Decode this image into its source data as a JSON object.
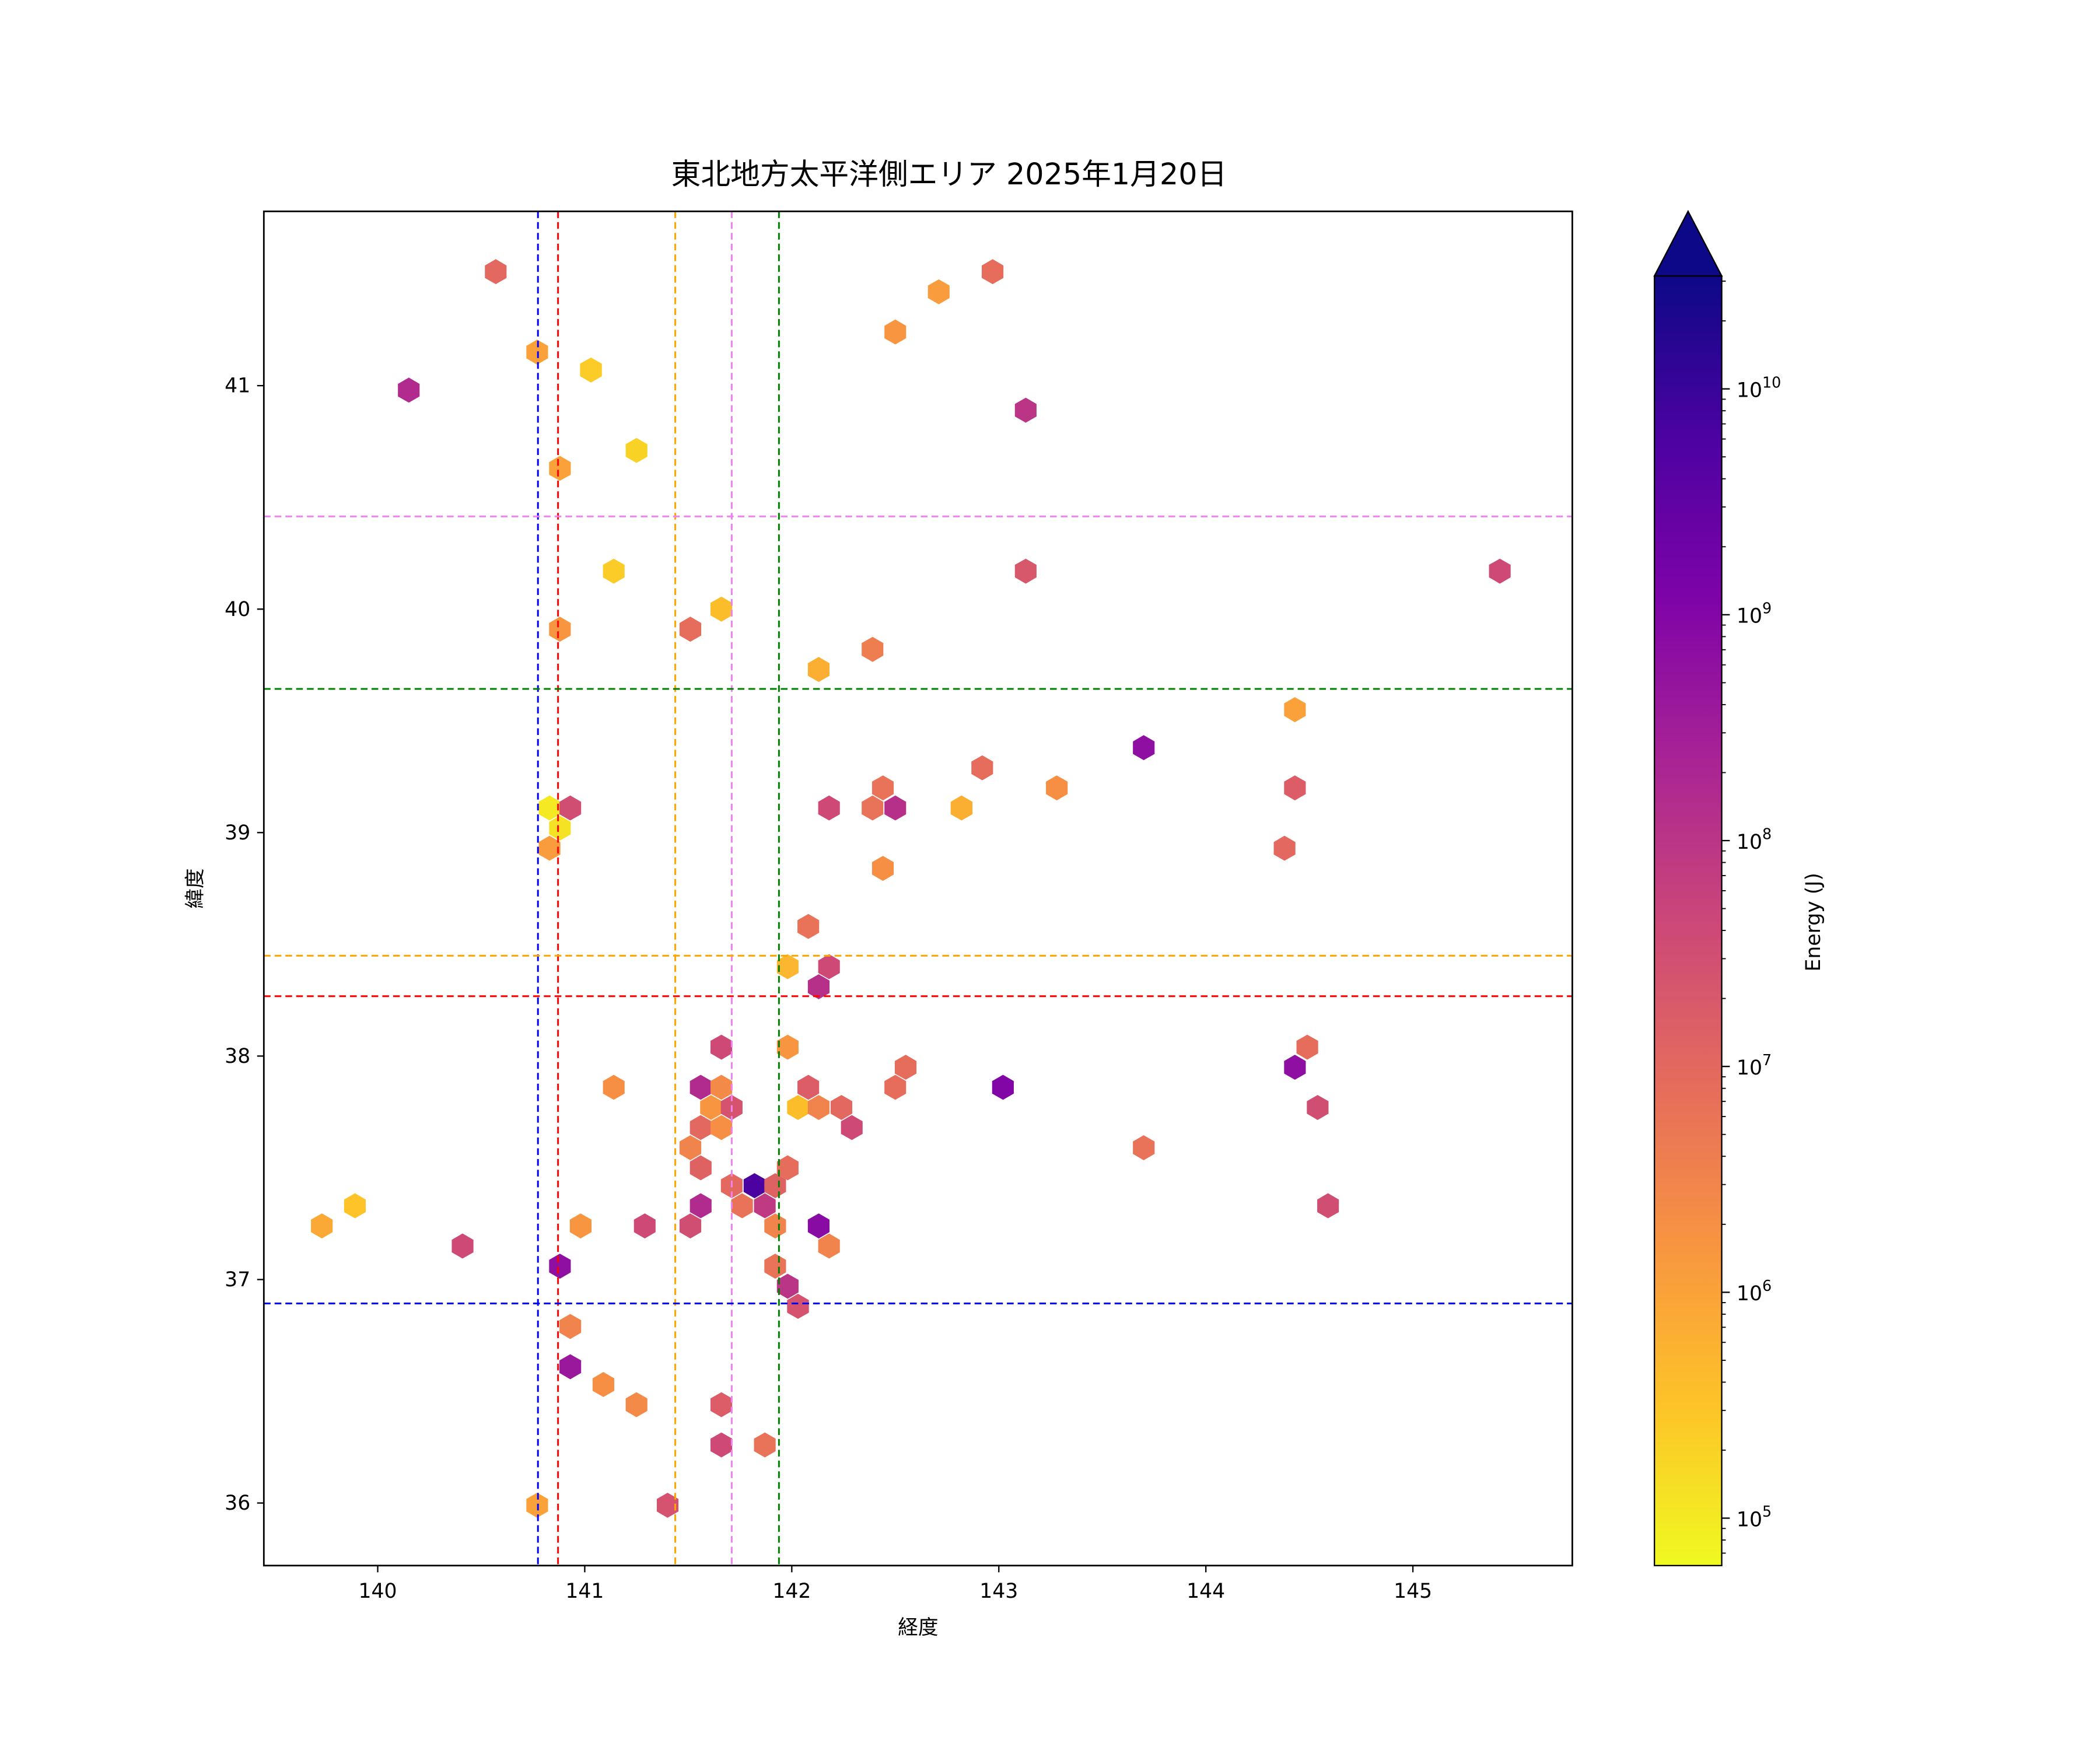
{
  "chart_data": {
    "type": "hexbin",
    "title": "東北地方太平洋側エリア 2025年1月20日",
    "xlabel": "経度",
    "ylabel": "緯度",
    "xlim": [
      139.45,
      145.77
    ],
    "ylim": [
      35.72,
      41.78
    ],
    "xticks": [
      140,
      141,
      142,
      143,
      144,
      145
    ],
    "yticks": [
      36,
      37,
      38,
      39,
      40,
      41
    ],
    "colorbar": {
      "label": "Energy (J)",
      "scale": "log",
      "colormap": "plasma_r",
      "log10_range": [
        4.79,
        10.5
      ],
      "extend": "max",
      "ticks": [
        {
          "exp": 5,
          "base": "10",
          "sup": "5"
        },
        {
          "exp": 6,
          "base": "10",
          "sup": "6"
        },
        {
          "exp": 7,
          "base": "10",
          "sup": "7"
        },
        {
          "exp": 8,
          "base": "10",
          "sup": "8"
        },
        {
          "exp": 9,
          "base": "10",
          "sup": "9"
        },
        {
          "exp": 10,
          "base": "10",
          "sup": "10"
        }
      ]
    },
    "reference_lines": {
      "vertical": [
        {
          "lon": 140.774,
          "color": "#0000ff"
        },
        {
          "lon": 140.871,
          "color": "#ff0000"
        },
        {
          "lon": 141.437,
          "color": "#ffa500"
        },
        {
          "lon": 141.71,
          "color": "#ee82ee"
        },
        {
          "lon": 141.938,
          "color": "#008000"
        }
      ],
      "horizontal": [
        {
          "lat": 40.415,
          "color": "#ee82ee"
        },
        {
          "lat": 39.643,
          "color": "#008000"
        },
        {
          "lat": 38.449,
          "color": "#ffa500"
        },
        {
          "lat": 38.268,
          "color": "#ff0000"
        },
        {
          "lat": 36.893,
          "color": "#0000ff"
        }
      ]
    },
    "columns": [
      "lon",
      "lat",
      "log10_energy_J"
    ],
    "points": [
      [
        140.57,
        41.51,
        7.0
      ],
      [
        140.77,
        41.15,
        6.0
      ],
      [
        140.15,
        40.98,
        8.2
      ],
      [
        141.03,
        41.07,
        5.4
      ],
      [
        141.25,
        40.71,
        5.3
      ],
      [
        140.88,
        40.63,
        6.0
      ],
      [
        141.14,
        40.17,
        5.4
      ],
      [
        140.88,
        39.91,
        6.2
      ],
      [
        141.51,
        39.91,
        6.9
      ],
      [
        141.66,
        40.0,
        5.6
      ],
      [
        142.13,
        39.73,
        5.8
      ],
      [
        142.39,
        39.82,
        6.6
      ],
      [
        142.5,
        41.24,
        6.2
      ],
      [
        142.71,
        41.42,
        6.1
      ],
      [
        142.97,
        41.51,
        6.9
      ],
      [
        143.13,
        40.89,
        8.0
      ],
      [
        143.13,
        40.17,
        7.3
      ],
      [
        145.42,
        40.17,
        7.6
      ],
      [
        140.83,
        39.11,
        5.0
      ],
      [
        140.88,
        39.02,
        5.1
      ],
      [
        140.93,
        39.11,
        7.5
      ],
      [
        140.83,
        38.93,
        6.1
      ],
      [
        142.18,
        39.11,
        7.6
      ],
      [
        142.39,
        39.11,
        6.8
      ],
      [
        142.44,
        39.2,
        6.8
      ],
      [
        142.5,
        39.11,
        8.1
      ],
      [
        142.44,
        38.84,
        6.3
      ],
      [
        142.82,
        39.11,
        5.8
      ],
      [
        142.92,
        39.29,
        6.9
      ],
      [
        143.28,
        39.2,
        6.3
      ],
      [
        143.7,
        39.38,
        8.8
      ],
      [
        144.43,
        39.55,
        6.0
      ],
      [
        144.43,
        39.2,
        7.2
      ],
      [
        144.38,
        38.93,
        7.0
      ],
      [
        142.08,
        38.58,
        6.8
      ],
      [
        141.98,
        38.4,
        5.7
      ],
      [
        142.18,
        38.4,
        7.6
      ],
      [
        142.13,
        38.31,
        8.1
      ],
      [
        141.66,
        38.04,
        7.6
      ],
      [
        141.98,
        38.04,
        6.2
      ],
      [
        141.14,
        37.86,
        6.3
      ],
      [
        141.56,
        37.86,
        8.2
      ],
      [
        141.66,
        37.86,
        6.4
      ],
      [
        141.61,
        37.77,
        6.2
      ],
      [
        141.71,
        37.77,
        7.4
      ],
      [
        141.56,
        37.68,
        7.0
      ],
      [
        141.66,
        37.68,
        6.3
      ],
      [
        141.51,
        37.59,
        6.5
      ],
      [
        141.56,
        37.5,
        7.1
      ],
      [
        142.08,
        37.86,
        7.2
      ],
      [
        142.03,
        37.77,
        5.6
      ],
      [
        142.13,
        37.77,
        6.5
      ],
      [
        142.24,
        37.77,
        7.0
      ],
      [
        142.29,
        37.68,
        7.6
      ],
      [
        142.5,
        37.86,
        6.9
      ],
      [
        142.55,
        37.95,
        6.9
      ],
      [
        143.02,
        37.86,
        9.0
      ],
      [
        144.43,
        37.95,
        8.8
      ],
      [
        144.49,
        38.04,
        6.9
      ],
      [
        144.54,
        37.77,
        7.5
      ],
      [
        144.59,
        37.33,
        7.5
      ],
      [
        143.7,
        37.59,
        6.8
      ],
      [
        141.98,
        37.5,
        6.9
      ],
      [
        141.71,
        37.42,
        7.0
      ],
      [
        141.82,
        37.42,
        9.8
      ],
      [
        141.92,
        37.42,
        7.1
      ],
      [
        141.76,
        37.33,
        6.8
      ],
      [
        141.87,
        37.33,
        7.9
      ],
      [
        141.56,
        37.33,
        8.2
      ],
      [
        141.51,
        37.24,
        7.5
      ],
      [
        141.92,
        37.24,
        6.5
      ],
      [
        142.13,
        37.24,
        8.9
      ],
      [
        142.18,
        37.15,
        6.5
      ],
      [
        141.92,
        37.06,
        6.8
      ],
      [
        141.98,
        36.97,
        8.0
      ],
      [
        142.03,
        36.88,
        7.4
      ],
      [
        141.29,
        37.24,
        7.6
      ],
      [
        140.98,
        37.24,
        6.2
      ],
      [
        140.41,
        37.15,
        7.6
      ],
      [
        139.73,
        37.24,
        5.9
      ],
      [
        139.89,
        37.33,
        5.5
      ],
      [
        140.88,
        37.06,
        8.8
      ],
      [
        140.93,
        36.79,
        6.5
      ],
      [
        140.93,
        36.61,
        8.6
      ],
      [
        141.09,
        36.53,
        6.3
      ],
      [
        141.25,
        36.44,
        6.4
      ],
      [
        141.66,
        36.44,
        7.2
      ],
      [
        141.66,
        36.26,
        7.6
      ],
      [
        141.87,
        36.26,
        6.8
      ],
      [
        141.4,
        35.99,
        7.4
      ],
      [
        140.77,
        35.99,
        6.0
      ]
    ]
  }
}
